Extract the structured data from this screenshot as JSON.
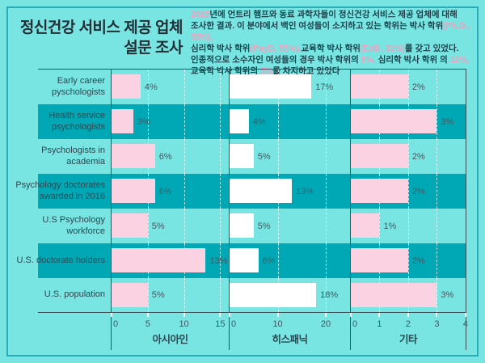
{
  "header": {
    "title_line1": "정신건강 서비스 제공 업체",
    "title_line2": "설문 조사",
    "description_lines": [
      [
        {
          "t": "2015",
          "h": true
        },
        {
          "t": "년에 언트리 햄프와 동료 과학자들이 정신건강 서비스 제공 업체에 대해",
          "h": false
        }
      ],
      [
        {
          "t": "조사한 결과. 이 분야에서 백인 여성들이 소지하고 있는 학위는 박사 학위",
          "h": false
        },
        {
          "t": "(Ph.D., 55%),",
          "h": true
        }
      ],
      [
        {
          "t": "심리학 박사 학위",
          "h": false
        },
        {
          "t": "(PsyD, 55%),",
          "h": true
        },
        {
          "t": "교육학 박사 학위",
          "h": false
        },
        {
          "t": "(EdD, 31%)",
          "h": true
        },
        {
          "t": "를 갖고 있었다.",
          "h": false
        }
      ],
      [
        {
          "t": "인종적으로 소수자인 여성들의 경우 박사 학위의 ",
          "h": false
        },
        {
          "t": "8%,",
          "h": true
        },
        {
          "t": " 심리학 박사 학위 의 ",
          "h": false
        },
        {
          "t": "11%,",
          "h": true
        }
      ],
      [
        {
          "t": "교육학 박사 학위의 ",
          "h": false
        },
        {
          "t": "5%",
          "h": true
        },
        {
          "t": "를 차지하고 있었다",
          "h": false
        }
      ]
    ]
  },
  "chart_data": {
    "type": "bar",
    "orientation": "horizontal",
    "value_suffix": "%",
    "grid": "dashed white vertical gridlines at axis ticks",
    "row_striping": "rows 2, 4, 6 have dark teal background",
    "categories": [
      "Early career pyschologists",
      "Health service psychologists",
      "Psychologists in academia",
      "Psychology doctorates awarded in 2016",
      "U.S Psychology workforce",
      "U.S. doctorate holders",
      "U.S. population"
    ],
    "series": [
      {
        "name": "아시아인",
        "values": [
          4,
          3,
          6,
          6,
          5,
          13,
          5
        ],
        "ticks": [
          0,
          5,
          10,
          15
        ],
        "axis_max": 16.3,
        "color": "#fbd2e2"
      },
      {
        "name": "히스패닉",
        "values": [
          17,
          4,
          5,
          13,
          5,
          6,
          18
        ],
        "ticks": [
          0,
          10,
          20
        ],
        "axis_max": 25.2,
        "color": "#ffffff"
      },
      {
        "name": "기타",
        "values": [
          2,
          3,
          2,
          2,
          1,
          2,
          3
        ],
        "ticks": [
          0,
          1,
          2,
          3,
          4
        ],
        "axis_max": 4.06,
        "color": "#fbd2e2"
      }
    ]
  },
  "colors": {
    "background": "#79e5e2",
    "panel_border": "#2aadba",
    "row_dark": "#00a8b6",
    "line": "#3e4e57",
    "title": "#222f36",
    "text_dark": "#1c3f49",
    "highlight_pink": "#f49fbe",
    "bar_pink": "#fbd2e2",
    "bar_white": "#ffffff",
    "label_text": "#2c4750",
    "value_text": "#44575f"
  }
}
